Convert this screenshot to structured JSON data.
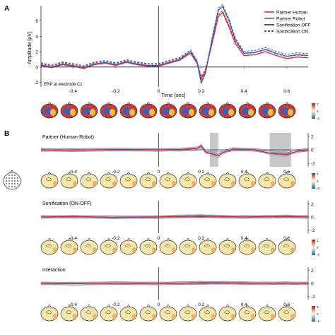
{
  "panels": {
    "a_label": "A",
    "b_label": "B"
  },
  "colors": {
    "human": "#d7262f",
    "robot": "#3b5fb6",
    "zero_line": "#222222",
    "highlight": "#c8c8c8",
    "topo_bg": "#f6e6a8",
    "topo_rim": "#f0a05a"
  },
  "chart_data": [
    {
      "type": "line",
      "title": "",
      "xlabel": "Time [sec]",
      "ylabel": "Amplitude [µV]",
      "annotation": "ERP at electrode Cz",
      "xlim": [
        -0.55,
        0.7
      ],
      "ylim": [
        -2.6,
        8.0
      ],
      "x_ticks": [
        "-0.4",
        "-0.2",
        "0",
        "0.2",
        "0.4",
        "0.6"
      ],
      "x_tick_values": [
        -0.4,
        -0.2,
        0,
        0.2,
        0.4,
        0.6
      ],
      "y_ticks": [
        "6",
        "4",
        "2",
        "0",
        "-2"
      ],
      "y_tick_values": [
        6,
        4,
        2,
        0,
        -2
      ],
      "legend": {
        "position": "top-right",
        "entries": [
          {
            "label": "Partner Human",
            "style": "solid",
            "color": "#d7262f"
          },
          {
            "label": "Partner Robot",
            "style": "solid",
            "color": "#3b5fb6"
          },
          {
            "label": "Sonification OFF",
            "style": "solid",
            "color": "#222222"
          },
          {
            "label": "Sonification ON",
            "style": "dashed",
            "color": "#222222"
          }
        ]
      },
      "series": [
        {
          "name": "Partner Human",
          "x": [
            -0.55,
            -0.5,
            -0.45,
            -0.4,
            -0.35,
            -0.3,
            -0.25,
            -0.2,
            -0.15,
            -0.1,
            -0.05,
            0,
            0.05,
            0.1,
            0.15,
            0.18,
            0.2,
            0.22,
            0.25,
            0.28,
            0.3,
            0.33,
            0.36,
            0.4,
            0.45,
            0.5,
            0.55,
            0.6,
            0.65,
            0.7
          ],
          "y": [
            0.2,
            -0.1,
            0.3,
            0.1,
            -0.2,
            0.3,
            0.5,
            0.2,
            0.6,
            0.3,
            0.1,
            0.1,
            0.5,
            0.9,
            1.8,
            0.5,
            -1.5,
            -0.5,
            3.0,
            6.6,
            7.1,
            5.2,
            3.0,
            1.5,
            1.6,
            2.0,
            1.5,
            1.1,
            1.3,
            1.2
          ]
        },
        {
          "name": "Partner Robot",
          "x": [
            -0.55,
            -0.5,
            -0.45,
            -0.4,
            -0.35,
            -0.3,
            -0.25,
            -0.2,
            -0.15,
            -0.1,
            -0.05,
            0,
            0.05,
            0.1,
            0.15,
            0.18,
            0.2,
            0.22,
            0.25,
            0.28,
            0.3,
            0.33,
            0.36,
            0.4,
            0.45,
            0.5,
            0.55,
            0.6,
            0.65,
            0.7
          ],
          "y": [
            0.3,
            0.0,
            0.4,
            0.2,
            -0.1,
            0.4,
            0.6,
            0.3,
            0.7,
            0.4,
            0.2,
            0.2,
            0.6,
            1.0,
            2.0,
            0.6,
            -2.1,
            -0.8,
            3.5,
            7.4,
            7.9,
            6.0,
            3.5,
            1.8,
            1.9,
            2.3,
            1.8,
            1.4,
            1.6,
            1.5
          ]
        }
      ]
    },
    {
      "type": "line",
      "title": "Partner (Human-Robot)",
      "xlim": [
        -0.55,
        0.7
      ],
      "ylim": [
        -2.5,
        2.5
      ],
      "x_ticks": [
        "-0.4",
        "-0.2",
        "0",
        "0.2",
        "0.4",
        "0.6"
      ],
      "x_tick_values": [
        -0.4,
        -0.2,
        0,
        0.2,
        0.4,
        0.6
      ],
      "y_ticks": [
        "2",
        "0",
        "-2"
      ],
      "y_tick_values": [
        2,
        0,
        -2
      ],
      "highlight_windows": [
        [
          0.24,
          0.28
        ],
        [
          0.52,
          0.62
        ]
      ],
      "series": [
        {
          "name": "Cz",
          "x": [
            -0.55,
            -0.4,
            -0.2,
            0,
            0.1,
            0.18,
            0.2,
            0.22,
            0.25,
            0.28,
            0.3,
            0.35,
            0.45,
            0.52,
            0.56,
            0.6,
            0.65,
            0.7
          ],
          "y": [
            0.0,
            -0.05,
            0.05,
            0.0,
            0.05,
            0.2,
            0.6,
            -0.3,
            -0.6,
            -0.9,
            -0.4,
            0.1,
            0.0,
            -0.5,
            -0.6,
            -0.7,
            -0.2,
            0.0
          ]
        }
      ]
    },
    {
      "type": "line",
      "title": "Sonification (ON-OFF)",
      "xlim": [
        -0.55,
        0.7
      ],
      "ylim": [
        -2.5,
        2.5
      ],
      "x_ticks": [
        "-0.4",
        "-0.2",
        "0",
        "0.2",
        "0.4",
        "0.6"
      ],
      "x_tick_values": [
        -0.4,
        -0.2,
        0,
        0.2,
        0.4,
        0.6
      ],
      "y_ticks": [
        "2",
        "0",
        "-2"
      ],
      "y_tick_values": [
        2,
        0,
        -2
      ],
      "series": [
        {
          "name": "Cz",
          "x": [
            -0.55,
            -0.4,
            -0.2,
            0,
            0.1,
            0.2,
            0.25,
            0.3,
            0.4,
            0.5,
            0.6,
            0.7
          ],
          "y": [
            0.0,
            0.05,
            -0.05,
            0.0,
            0.1,
            0.15,
            0.1,
            0.05,
            0.0,
            0.05,
            0.1,
            0.0
          ]
        }
      ]
    },
    {
      "type": "line",
      "title": "Interaction",
      "xlim": [
        -0.55,
        0.7
      ],
      "ylim": [
        -2.5,
        2.5
      ],
      "x_ticks": [
        "-0.4",
        "-0.2",
        "0",
        "0.2",
        "0.4",
        "0.6"
      ],
      "x_tick_values": [
        -0.4,
        -0.2,
        0,
        0.2,
        0.4,
        0.6
      ],
      "y_ticks": [
        "2",
        "0",
        "-2"
      ],
      "y_tick_values": [
        2,
        0,
        -2
      ],
      "series": [
        {
          "name": "Cz",
          "x": [
            -0.55,
            -0.4,
            -0.2,
            0,
            0.1,
            0.2,
            0.3,
            0.4,
            0.5,
            0.6,
            0.7
          ],
          "y": [
            0.0,
            -0.05,
            0.05,
            0.0,
            0.05,
            0.1,
            0.1,
            0.05,
            0.0,
            0.05,
            0.0
          ]
        }
      ]
    }
  ],
  "colorbar_ticks": [
    "2",
    "0",
    "-2"
  ]
}
